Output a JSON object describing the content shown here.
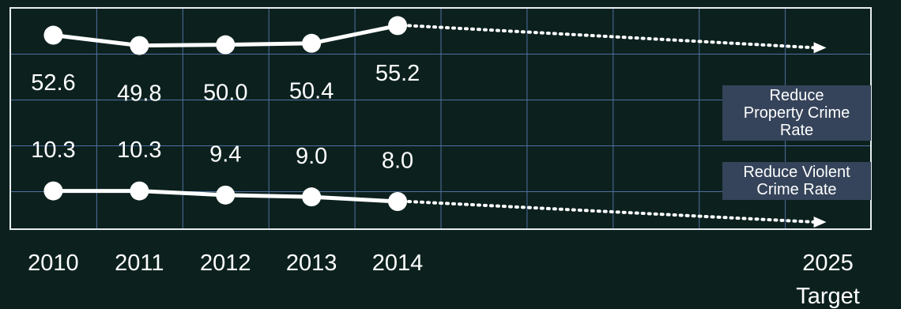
{
  "chart_data": {
    "type": "line",
    "categories": [
      "2010",
      "2011",
      "2012",
      "2013",
      "2014",
      null,
      null,
      null,
      null,
      "2025 Target"
    ],
    "series": [
      {
        "color": "#ffffff",
        "axis": "y",
        "values": [
          52.6,
          49.8,
          50.0,
          50.4,
          55.2,
          null,
          null,
          null,
          null,
          null
        ],
        "value_labels": [
          "52.6",
          "49.8",
          "50.0",
          "50.4",
          "55.2",
          null,
          null,
          null,
          null,
          null
        ]
      },
      {
        "color": "#ffffff",
        "axis": "y2",
        "values": [
          10.3,
          10.3,
          9.4,
          9.0,
          8.0,
          null,
          null,
          null,
          null,
          null
        ],
        "value_labels": [
          "10.3",
          "10.3",
          "9.4",
          "9.0",
          "8.0",
          null,
          null,
          null,
          null,
          null
        ]
      }
    ],
    "ylim": [
      0,
      60
    ],
    "y2lim": [
      2,
      50
    ],
    "grid": true,
    "annotations": [
      {
        "lines": [
          "Reduce",
          "Property Crime",
          "Rate"
        ]
      },
      {
        "lines": [
          "Reduce Violent",
          "Crime Rate"
        ]
      }
    ]
  }
}
